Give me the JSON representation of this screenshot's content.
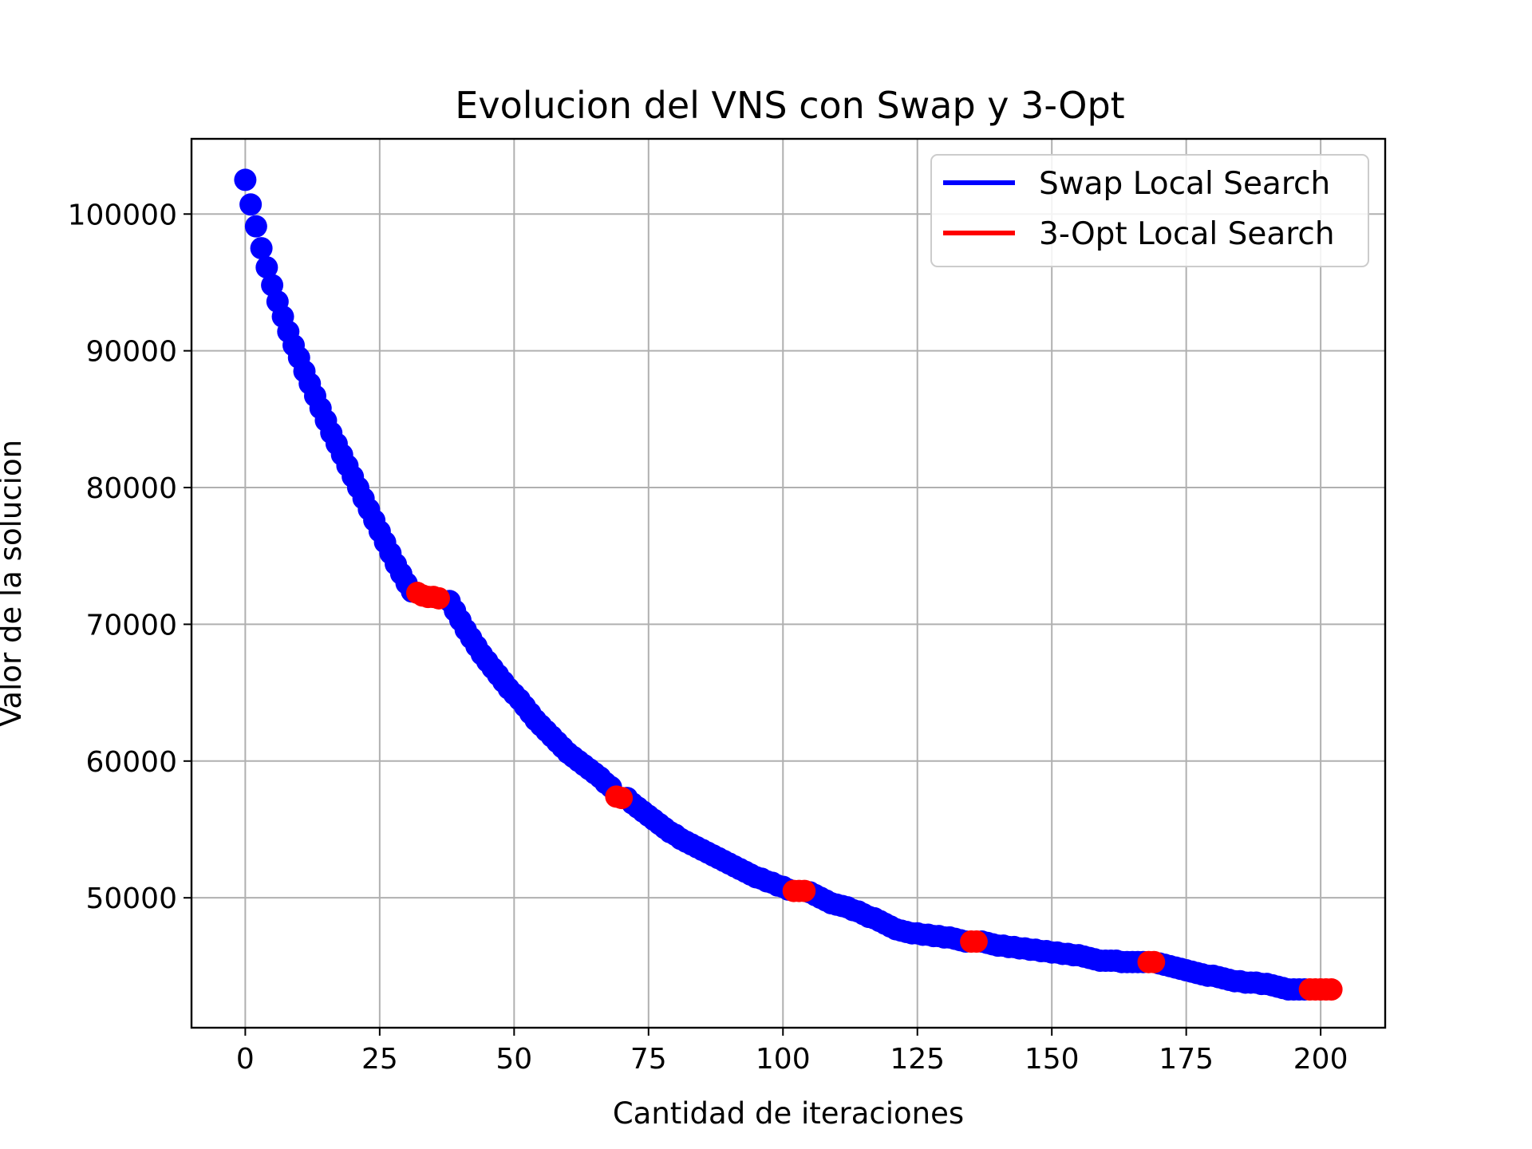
{
  "chart_data": {
    "type": "scatter",
    "title": "Evolucion del VNS con Swap y 3-Opt",
    "xlabel": "Cantidad de iteraciones",
    "ylabel": "Valor de la solucion",
    "xlim": [
      -10,
      212
    ],
    "ylim": [
      40500,
      105500
    ],
    "xticks": [
      0,
      25,
      50,
      75,
      100,
      125,
      150,
      175,
      200
    ],
    "yticks": [
      50000,
      60000,
      70000,
      80000,
      90000,
      100000
    ],
    "grid": true,
    "legend_position": "top-right",
    "series": [
      {
        "name": "Swap Local Search",
        "color": "#0000ff",
        "points": [
          [
            0,
            102500
          ],
          [
            1,
            100700
          ],
          [
            2,
            99100
          ],
          [
            3,
            97500
          ],
          [
            4,
            96100
          ],
          [
            5,
            94800
          ],
          [
            6,
            93600
          ],
          [
            7,
            92500
          ],
          [
            8,
            91400
          ],
          [
            9,
            90400
          ],
          [
            10,
            89500
          ],
          [
            11,
            88500
          ],
          [
            12,
            87600
          ],
          [
            13,
            86700
          ],
          [
            14,
            85800
          ],
          [
            15,
            84900
          ],
          [
            16,
            84000
          ],
          [
            17,
            83200
          ],
          [
            18,
            82400
          ],
          [
            19,
            81600
          ],
          [
            20,
            80800
          ],
          [
            21,
            80000
          ],
          [
            22,
            79200
          ],
          [
            23,
            78400
          ],
          [
            24,
            77600
          ],
          [
            25,
            76800
          ],
          [
            26,
            76000
          ],
          [
            27,
            75200
          ],
          [
            28,
            74400
          ],
          [
            29,
            73700
          ],
          [
            30,
            73000
          ],
          [
            31,
            72400
          ],
          [
            38,
            71700
          ],
          [
            39,
            71000
          ],
          [
            40,
            70300
          ],
          [
            41,
            69600
          ],
          [
            42,
            69000
          ],
          [
            43,
            68400
          ],
          [
            44,
            67800
          ],
          [
            45,
            67300
          ],
          [
            46,
            66800
          ],
          [
            47,
            66300
          ],
          [
            48,
            65800
          ],
          [
            49,
            65300
          ],
          [
            50,
            64900
          ],
          [
            51,
            64500
          ],
          [
            52,
            64000
          ],
          [
            53,
            63500
          ],
          [
            54,
            63000
          ],
          [
            55,
            62600
          ],
          [
            56,
            62200
          ],
          [
            57,
            61800
          ],
          [
            58,
            61400
          ],
          [
            59,
            61000
          ],
          [
            60,
            60600
          ],
          [
            61,
            60300
          ],
          [
            62,
            60000
          ],
          [
            63,
            59700
          ],
          [
            64,
            59400
          ],
          [
            65,
            59100
          ],
          [
            66,
            58800
          ],
          [
            67,
            58400
          ],
          [
            68,
            58100
          ],
          [
            71,
            57300
          ],
          [
            72,
            56900
          ],
          [
            73,
            56600
          ],
          [
            74,
            56300
          ],
          [
            75,
            56000
          ],
          [
            76,
            55700
          ],
          [
            77,
            55400
          ],
          [
            78,
            55100
          ],
          [
            79,
            54800
          ],
          [
            80,
            54600
          ],
          [
            81,
            54300
          ],
          [
            82,
            54100
          ],
          [
            83,
            53900
          ],
          [
            84,
            53700
          ],
          [
            85,
            53500
          ],
          [
            86,
            53300
          ],
          [
            87,
            53100
          ],
          [
            88,
            52900
          ],
          [
            89,
            52700
          ],
          [
            90,
            52500
          ],
          [
            91,
            52300
          ],
          [
            92,
            52100
          ],
          [
            93,
            51900
          ],
          [
            94,
            51700
          ],
          [
            95,
            51500
          ],
          [
            96,
            51400
          ],
          [
            97,
            51200
          ],
          [
            98,
            51100
          ],
          [
            99,
            50900
          ],
          [
            100,
            50800
          ],
          [
            101,
            50600
          ],
          [
            105,
            50400
          ],
          [
            106,
            50200
          ],
          [
            107,
            50000
          ],
          [
            108,
            49800
          ],
          [
            109,
            49600
          ],
          [
            110,
            49500
          ],
          [
            111,
            49400
          ],
          [
            112,
            49300
          ],
          [
            113,
            49100
          ],
          [
            114,
            49000
          ],
          [
            115,
            48800
          ],
          [
            116,
            48600
          ],
          [
            117,
            48500
          ],
          [
            118,
            48300
          ],
          [
            119,
            48100
          ],
          [
            120,
            47900
          ],
          [
            121,
            47700
          ],
          [
            122,
            47600
          ],
          [
            123,
            47500
          ],
          [
            124,
            47400
          ],
          [
            125,
            47400
          ],
          [
            126,
            47300
          ],
          [
            127,
            47300
          ],
          [
            128,
            47200
          ],
          [
            129,
            47200
          ],
          [
            130,
            47100
          ],
          [
            131,
            47100
          ],
          [
            132,
            47000
          ],
          [
            133,
            46900
          ],
          [
            134,
            46800
          ],
          [
            137,
            46800
          ],
          [
            138,
            46700
          ],
          [
            139,
            46600
          ],
          [
            140,
            46500
          ],
          [
            141,
            46500
          ],
          [
            142,
            46400
          ],
          [
            143,
            46400
          ],
          [
            144,
            46300
          ],
          [
            145,
            46300
          ],
          [
            146,
            46200
          ],
          [
            147,
            46200
          ],
          [
            148,
            46100
          ],
          [
            149,
            46100
          ],
          [
            150,
            46000
          ],
          [
            151,
            46000
          ],
          [
            152,
            45900
          ],
          [
            153,
            45900
          ],
          [
            154,
            45800
          ],
          [
            155,
            45800
          ],
          [
            156,
            45700
          ],
          [
            157,
            45600
          ],
          [
            158,
            45500
          ],
          [
            159,
            45400
          ],
          [
            160,
            45400
          ],
          [
            161,
            45400
          ],
          [
            162,
            45400
          ],
          [
            163,
            45300
          ],
          [
            164,
            45300
          ],
          [
            165,
            45300
          ],
          [
            166,
            45300
          ],
          [
            167,
            45300
          ],
          [
            170,
            45200
          ],
          [
            171,
            45100
          ],
          [
            172,
            45000
          ],
          [
            173,
            44900
          ],
          [
            174,
            44800
          ],
          [
            175,
            44700
          ],
          [
            176,
            44600
          ],
          [
            177,
            44500
          ],
          [
            178,
            44400
          ],
          [
            179,
            44300
          ],
          [
            180,
            44300
          ],
          [
            181,
            44200
          ],
          [
            182,
            44100
          ],
          [
            183,
            44000
          ],
          [
            184,
            43900
          ],
          [
            185,
            43900
          ],
          [
            186,
            43800
          ],
          [
            187,
            43800
          ],
          [
            188,
            43800
          ],
          [
            189,
            43700
          ],
          [
            190,
            43700
          ],
          [
            191,
            43600
          ],
          [
            192,
            43500
          ],
          [
            193,
            43400
          ],
          [
            194,
            43300
          ],
          [
            195,
            43300
          ],
          [
            196,
            43300
          ],
          [
            197,
            43300
          ]
        ]
      },
      {
        "name": "3-Opt Local Search",
        "color": "#ff0000",
        "points": [
          [
            32,
            72300
          ],
          [
            33,
            72100
          ],
          [
            34,
            72000
          ],
          [
            35,
            72000
          ],
          [
            36,
            71900
          ],
          [
            69,
            57400
          ],
          [
            70,
            57300
          ],
          [
            102,
            50500
          ],
          [
            103,
            50500
          ],
          [
            104,
            50500
          ],
          [
            135,
            46800
          ],
          [
            136,
            46800
          ],
          [
            168,
            45300
          ],
          [
            169,
            45300
          ],
          [
            198,
            43300
          ],
          [
            199,
            43300
          ],
          [
            200,
            43300
          ],
          [
            201,
            43300
          ],
          [
            202,
            43300
          ]
        ]
      }
    ]
  }
}
